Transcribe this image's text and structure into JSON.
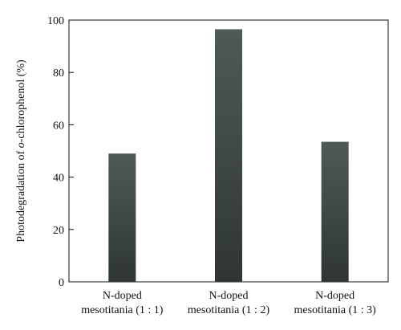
{
  "chart_data": {
    "type": "bar",
    "categories": [
      [
        "N-doped",
        "mesotitania (1 : 1)"
      ],
      [
        "N-doped",
        "mesotitania (1 : 2)"
      ],
      [
        "N-doped",
        "mesotitania (1 : 3)"
      ]
    ],
    "values": [
      49,
      96.5,
      53.5
    ],
    "ylabel_prefix": "Photodegradation of ",
    "ylabel_italic": "o",
    "ylabel_suffix": "-chlorophenol (%)",
    "ylim": [
      0,
      100
    ],
    "yticks": [
      0,
      20,
      40,
      60,
      80,
      100
    ],
    "ytick_labels": [
      "0",
      "20",
      "40",
      "60",
      "80",
      "100"
    ],
    "grid": false,
    "bar_color_top": "#4e5a58",
    "bar_color_bottom": "#2f3634"
  }
}
